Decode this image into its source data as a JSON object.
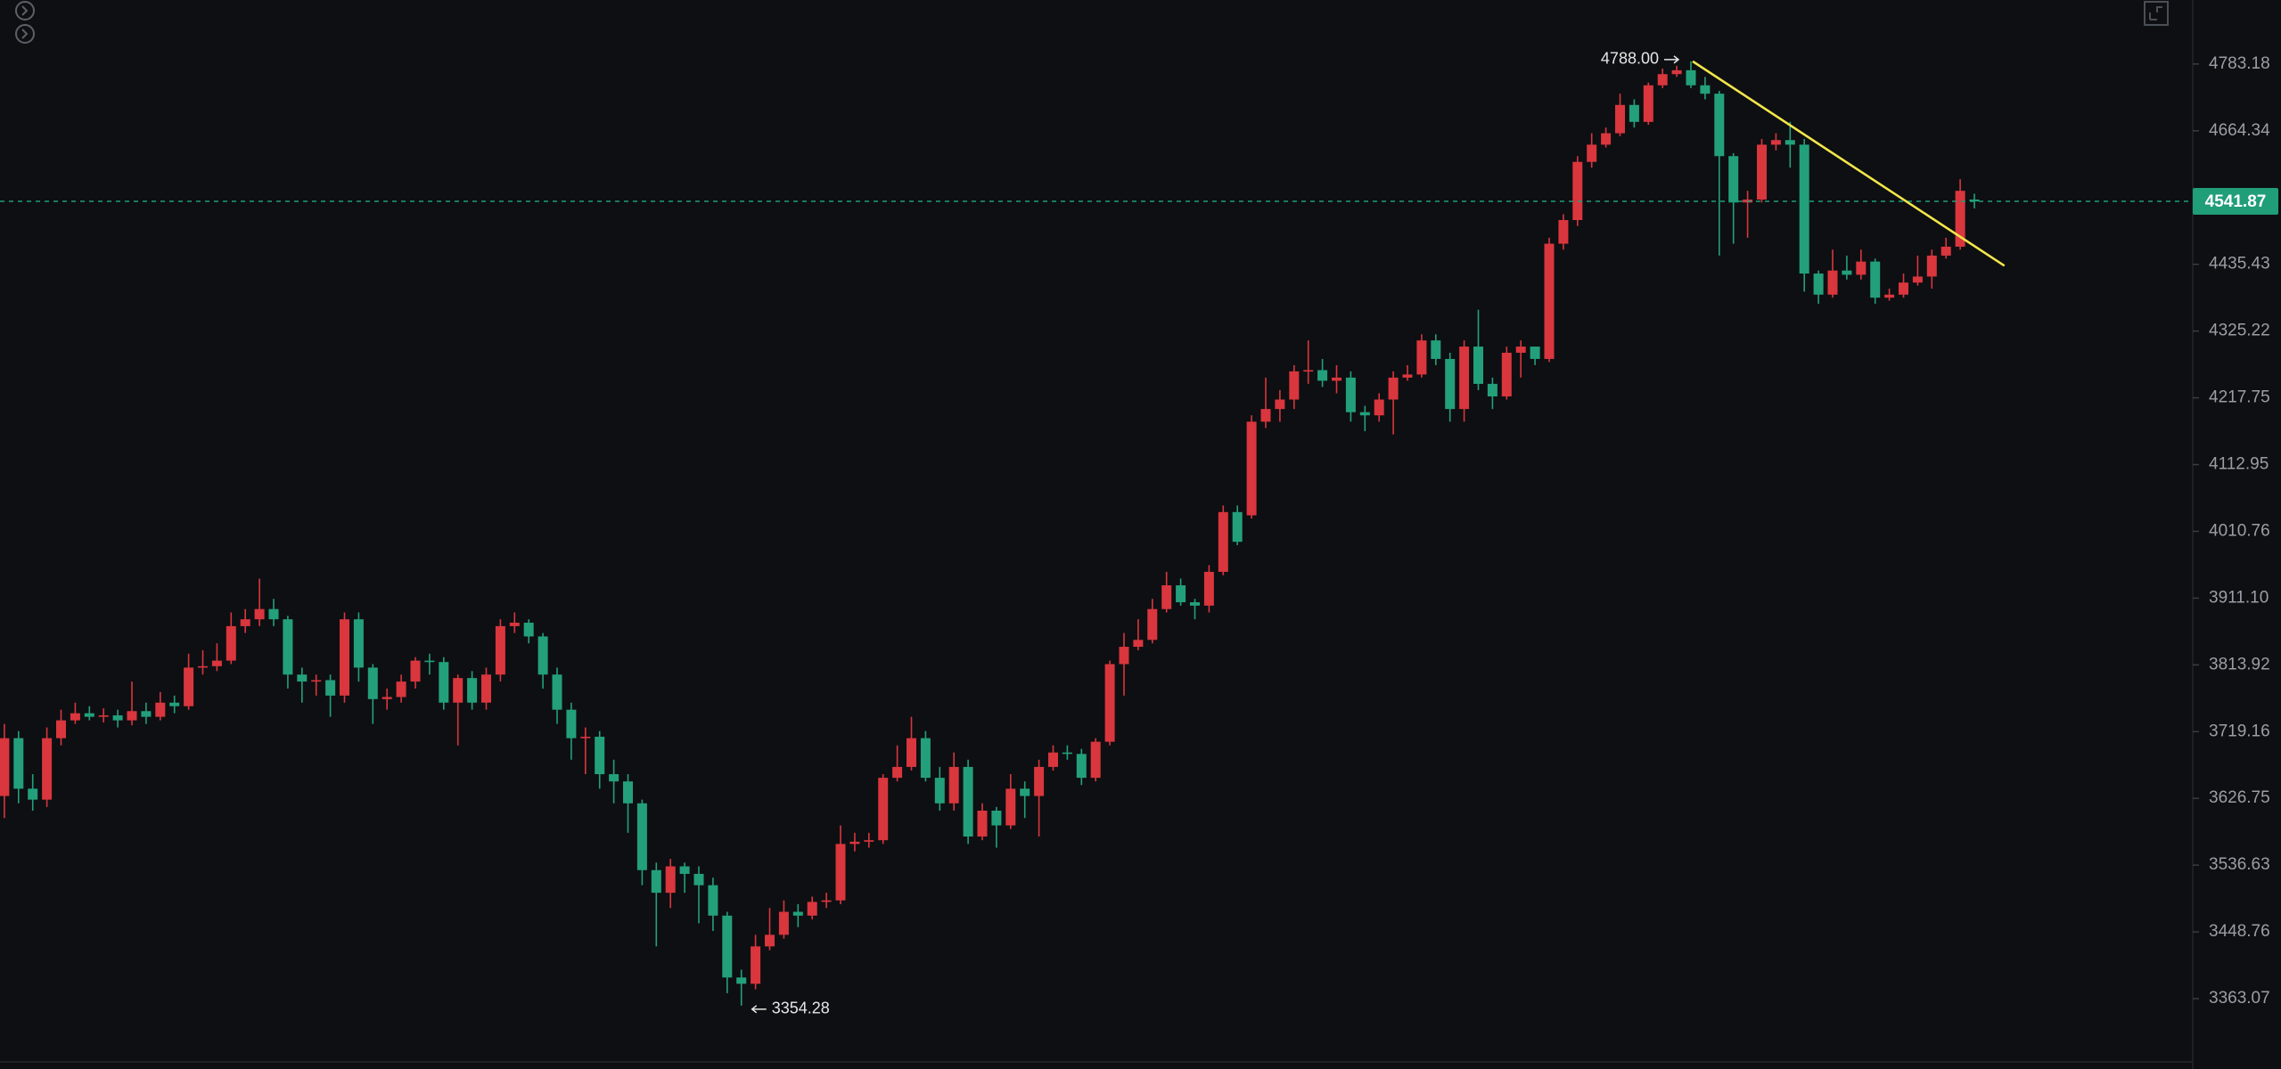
{
  "chart_data": {
    "type": "candlestick",
    "log": true,
    "ylim": [
      3285,
      4900
    ],
    "yticks": [
      4783.18,
      4664.34,
      4435.43,
      4325.22,
      4217.75,
      4112.95,
      4010.76,
      {
        "value": 3911.1,
        "label": "3911.10"
      },
      3813.92,
      3719.16,
      3626.75,
      3536.63,
      3448.76,
      3363.07
    ],
    "up_color": "#d9363e",
    "down_color": "#23a07b",
    "open": [
      3630,
      3710,
      3640,
      3625,
      3710,
      3735,
      3745,
      3740,
      3742,
      3735,
      3748,
      3740,
      3760,
      3755,
      3810,
      3812,
      3820,
      3870,
      3880,
      3895,
      3880,
      3800,
      3790,
      3792,
      3770,
      3880,
      3810,
      3765,
      3768,
      3790,
      3820,
      3818,
      3760,
      3795,
      3760,
      3800,
      3870,
      3875,
      3855,
      3800,
      3750,
      3710,
      3712,
      3660,
      3650,
      3620,
      3530,
      3500,
      3535,
      3525,
      3510,
      3470,
      3390,
      3382,
      3430,
      3445,
      3475,
      3470,
      3488,
      3490,
      3565,
      3568,
      3570,
      3655,
      3670,
      3710,
      3655,
      3620,
      3670,
      3575,
      3610,
      3590,
      3640,
      3630,
      3670,
      3690,
      3688,
      3655,
      3705,
      3815,
      3840,
      3850,
      3895,
      3930,
      3905,
      3900,
      3950,
      4040,
      4035,
      4180,
      4200,
      4215,
      4260,
      4262,
      4245,
      4250,
      4195,
      4190,
      4215,
      4250,
      4255,
      4310,
      4280,
      4200,
      4300,
      4240,
      4220,
      4290,
      4300,
      4280,
      4470,
      4510,
      4610,
      4640,
      4660,
      4710,
      4680,
      4745,
      4765,
      4772,
      4745,
      4730,
      4620,
      4540,
      4545,
      4640,
      4648,
      4640,
      4420,
      4385,
      4425,
      4418,
      4440,
      4380,
      4385,
      4405,
      4415,
      4450,
      4465,
      4545
    ],
    "high": [
      3730,
      3720,
      3660,
      3725,
      3750,
      3760,
      3755,
      3752,
      3750,
      3790,
      3760,
      3775,
      3770,
      3830,
      3835,
      3845,
      3890,
      3895,
      3940,
      3910,
      3885,
      3810,
      3800,
      3800,
      3890,
      3890,
      3815,
      3780,
      3800,
      3825,
      3830,
      3825,
      3800,
      3805,
      3810,
      3880,
      3890,
      3880,
      3860,
      3810,
      3760,
      3725,
      3720,
      3680,
      3660,
      3625,
      3540,
      3545,
      3540,
      3535,
      3520,
      3475,
      3400,
      3445,
      3480,
      3490,
      3485,
      3495,
      3500,
      3590,
      3580,
      3580,
      3660,
      3700,
      3740,
      3720,
      3670,
      3690,
      3680,
      3620,
      3615,
      3660,
      3650,
      3680,
      3700,
      3700,
      3695,
      3710,
      3820,
      3860,
      3880,
      3910,
      3950,
      3940,
      3910,
      3960,
      4050,
      4050,
      4190,
      4250,
      4230,
      4270,
      4310,
      4280,
      4270,
      4260,
      4205,
      4225,
      4260,
      4270,
      4320,
      4320,
      4290,
      4310,
      4360,
      4250,
      4300,
      4310,
      4300,
      4480,
      4520,
      4620,
      4660,
      4670,
      4730,
      4720,
      4750,
      4775,
      4780,
      4788,
      4760,
      4735,
      4625,
      4560,
      4650,
      4660,
      4680,
      4650,
      4425,
      4460,
      4450,
      4460,
      4445,
      4395,
      4420,
      4450,
      4460,
      4480,
      4580,
      4555
    ],
    "low": [
      3600,
      3620,
      3610,
      3615,
      3700,
      3730,
      3735,
      3732,
      3725,
      3728,
      3730,
      3735,
      3745,
      3750,
      3800,
      3805,
      3815,
      3860,
      3870,
      3870,
      3780,
      3760,
      3770,
      3740,
      3760,
      3790,
      3730,
      3750,
      3760,
      3780,
      3800,
      3750,
      3700,
      3750,
      3750,
      3790,
      3860,
      3845,
      3780,
      3730,
      3680,
      3660,
      3640,
      3620,
      3580,
      3510,
      3430,
      3480,
      3500,
      3460,
      3450,
      3370,
      3354.28,
      3375,
      3425,
      3440,
      3455,
      3465,
      3480,
      3485,
      3555,
      3560,
      3565,
      3650,
      3665,
      3650,
      3610,
      3610,
      3565,
      3570,
      3560,
      3585,
      3600,
      3575,
      3665,
      3680,
      3645,
      3650,
      3700,
      3770,
      3835,
      3845,
      3890,
      3900,
      3880,
      3890,
      3945,
      3990,
      4030,
      4170,
      4180,
      4200,
      4240,
      4235,
      4225,
      4180,
      4165,
      4180,
      4160,
      4245,
      4250,
      4270,
      4180,
      4180,
      4230,
      4200,
      4215,
      4250,
      4270,
      4275,
      4460,
      4500,
      4600,
      4635,
      4655,
      4670,
      4675,
      4740,
      4760,
      4740,
      4720,
      4450,
      4470,
      4480,
      4540,
      4630,
      4600,
      4390,
      4370,
      4380,
      4410,
      4410,
      4370,
      4375,
      4380,
      4400,
      4395,
      4445,
      4460,
      4530
    ],
    "close": [
      3710,
      3640,
      3625,
      3710,
      3735,
      3745,
      3740,
      3742,
      3735,
      3748,
      3740,
      3760,
      3755,
      3810,
      3812,
      3820,
      3870,
      3880,
      3895,
      3880,
      3800,
      3790,
      3792,
      3770,
      3880,
      3810,
      3765,
      3768,
      3790,
      3820,
      3818,
      3760,
      3795,
      3760,
      3800,
      3870,
      3875,
      3855,
      3800,
      3750,
      3710,
      3712,
      3660,
      3650,
      3620,
      3530,
      3500,
      3535,
      3525,
      3510,
      3470,
      3390,
      3382,
      3430,
      3445,
      3475,
      3470,
      3488,
      3490,
      3565,
      3568,
      3570,
      3655,
      3670,
      3710,
      3655,
      3620,
      3670,
      3575,
      3610,
      3590,
      3640,
      3630,
      3670,
      3690,
      3688,
      3655,
      3705,
      3815,
      3840,
      3850,
      3895,
      3930,
      3905,
      3900,
      3950,
      4040,
      3995,
      4180,
      4200,
      4215,
      4260,
      4262,
      4245,
      4250,
      4195,
      4190,
      4215,
      4250,
      4255,
      4310,
      4280,
      4200,
      4300,
      4240,
      4220,
      4290,
      4300,
      4280,
      4470,
      4510,
      4610,
      4640,
      4660,
      4710,
      4680,
      4745,
      4765,
      4772,
      4745,
      4730,
      4620,
      4540,
      4545,
      4640,
      4648,
      4640,
      4420,
      4385,
      4425,
      4418,
      4440,
      4380,
      4385,
      4405,
      4415,
      4450,
      4465,
      4560,
      4541.87
    ],
    "last_price": 4541.87,
    "last_price_color": "#1f9e78",
    "high_label": {
      "value": 4788,
      "label": "4788.00"
    },
    "low_label": 3354.28,
    "trendline": {
      "from": 4788,
      "to": 4433,
      "color": "#f2e64b"
    }
  }
}
